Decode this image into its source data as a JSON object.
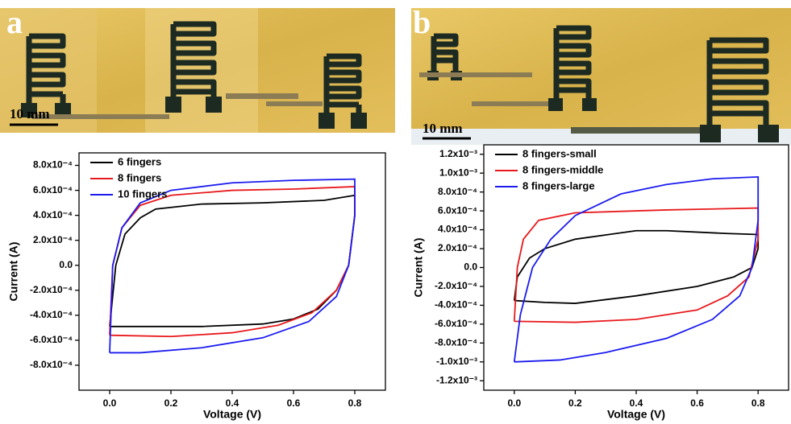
{
  "panels": [
    {
      "label": "a",
      "scale_bar": "10 mm"
    },
    {
      "label": "b",
      "scale_bar": "10 mm"
    }
  ],
  "chart_data": [
    {
      "type": "line",
      "xlabel": "Voltage (V)",
      "ylabel": "Current (A)",
      "legend": "upper-left",
      "xlim": [
        -0.1,
        0.9
      ],
      "ylim": [
        -0.001,
        0.0009
      ],
      "xticks": [
        {
          "value": 0,
          "label": "0.0"
        },
        0.2,
        0.4,
        0.6,
        0.8
      ],
      "yticks": [
        {
          "value": -0.0008,
          "label": "-8.0x10⁻⁴"
        },
        {
          "value": -0.0006,
          "label": "-6.0x10⁻⁴"
        },
        {
          "value": -0.0004,
          "label": "-4.0x10⁻⁴"
        },
        {
          "value": -0.0002,
          "label": "-2.0x10⁻⁴"
        },
        {
          "value": 0,
          "label": "0.0"
        },
        {
          "value": 0.0002,
          "label": "2.0x10⁻⁴"
        },
        {
          "value": 0.0004,
          "label": "4.0x10⁻⁴"
        },
        {
          "value": 0.0006,
          "label": "6.0x10⁻⁴"
        },
        {
          "value": 0.0008,
          "label": "8.0x10⁻⁴"
        }
      ],
      "series": [
        {
          "name": "6 fingers",
          "color": "#000000",
          "x": [
            0,
            0.02,
            0.05,
            0.1,
            0.15,
            0.3,
            0.5,
            0.7,
            0.8,
            0.8,
            0.78,
            0.74,
            0.68,
            0.6,
            0.5,
            0.3,
            0.1,
            0
          ],
          "values": [
            -0.00049,
            0,
            0.00025,
            0.00038,
            0.00045,
            0.00049,
            0.0005,
            0.00052,
            0.00056,
            0.0004,
            0,
            -0.0002,
            -0.00035,
            -0.00043,
            -0.00047,
            -0.00049,
            -0.00049,
            -0.00049
          ]
        },
        {
          "name": "8 fingers",
          "color": "#e8191c",
          "x": [
            0,
            0.01,
            0.04,
            0.1,
            0.2,
            0.4,
            0.6,
            0.8,
            0.8,
            0.78,
            0.74,
            0.66,
            0.55,
            0.4,
            0.2,
            0
          ],
          "values": [
            -0.00056,
            0,
            0.0003,
            0.00048,
            0.00056,
            0.0006,
            0.00061,
            0.00063,
            0.0004,
            0,
            -0.0002,
            -0.00038,
            -0.00048,
            -0.00054,
            -0.00057,
            -0.00056
          ]
        },
        {
          "name": "10 fingers",
          "color": "#1b1bf0",
          "x": [
            0,
            0.01,
            0.04,
            0.1,
            0.2,
            0.4,
            0.6,
            0.8,
            0.8,
            0.78,
            0.74,
            0.65,
            0.5,
            0.3,
            0.1,
            0
          ],
          "values": [
            -0.0007,
            0,
            0.0003,
            0.0005,
            0.0006,
            0.00066,
            0.00068,
            0.00069,
            0.0004,
            0,
            -0.00025,
            -0.00045,
            -0.00058,
            -0.00066,
            -0.0007,
            -0.0007
          ]
        }
      ]
    },
    {
      "type": "line",
      "xlabel": "Voltage (V)",
      "ylabel": "Current (A)",
      "legend": "upper-left",
      "xlim": [
        -0.1,
        0.9
      ],
      "ylim": [
        -0.0013,
        0.0013
      ],
      "xticks": [
        {
          "value": 0,
          "label": "0.0"
        },
        0.2,
        0.4,
        0.6,
        0.8
      ],
      "yticks": [
        {
          "value": -0.0012,
          "label": "-1.2x10⁻³"
        },
        {
          "value": -0.001,
          "label": "-1.0x10⁻³"
        },
        {
          "value": -0.0008,
          "label": "-8.0x10⁻⁴"
        },
        {
          "value": -0.0006,
          "label": "-6.0x10⁻⁴"
        },
        {
          "value": -0.0004,
          "label": "-4.0x10⁻⁴"
        },
        {
          "value": -0.0002,
          "label": "-2.0x10⁻⁴"
        },
        {
          "value": 0,
          "label": "0.0"
        },
        {
          "value": 0.0002,
          "label": "2.0x10⁻⁴"
        },
        {
          "value": 0.0004,
          "label": "4.0x10⁻⁴"
        },
        {
          "value": 0.0006,
          "label": "6.0x10⁻⁴"
        },
        {
          "value": 0.0008,
          "label": "8.0x10⁻⁴"
        },
        {
          "value": 0.001,
          "label": "1.0x10⁻³"
        },
        {
          "value": 0.0012,
          "label": "1.2x10⁻³"
        }
      ],
      "series": [
        {
          "name": "8 fingers-small",
          "color": "#000000",
          "x": [
            0,
            0.01,
            0.05,
            0.1,
            0.2,
            0.4,
            0.5,
            0.7,
            0.8,
            0.8,
            0.78,
            0.72,
            0.6,
            0.4,
            0.2,
            0.1,
            0
          ],
          "values": [
            -0.00035,
            -0.0001,
            0.0001,
            0.0002,
            0.0003,
            0.00039,
            0.00039,
            0.00036,
            0.00035,
            0.0002,
            0,
            -0.0001,
            -0.0002,
            -0.0003,
            -0.00038,
            -0.00037,
            -0.00035
          ]
        },
        {
          "name": "8 fingers-middle",
          "color": "#e8191c",
          "x": [
            0,
            0.01,
            0.03,
            0.08,
            0.2,
            0.5,
            0.8,
            0.8,
            0.77,
            0.7,
            0.6,
            0.4,
            0.2,
            0
          ],
          "values": [
            -0.00057,
            0,
            0.0003,
            0.0005,
            0.00058,
            0.00061,
            0.00063,
            0.0003,
            -0.0001,
            -0.0003,
            -0.00045,
            -0.00055,
            -0.00058,
            -0.00057
          ]
        },
        {
          "name": "8 fingers-large",
          "color": "#1b1bf0",
          "x": [
            0,
            0.02,
            0.06,
            0.12,
            0.2,
            0.35,
            0.5,
            0.65,
            0.8,
            0.8,
            0.78,
            0.74,
            0.65,
            0.5,
            0.3,
            0.15,
            0
          ],
          "values": [
            -0.001,
            -0.0005,
            0,
            0.0003,
            0.00055,
            0.00078,
            0.00088,
            0.00094,
            0.00096,
            0.0005,
            0,
            -0.0003,
            -0.00055,
            -0.00075,
            -0.0009,
            -0.00098,
            -0.001
          ]
        }
      ]
    }
  ]
}
